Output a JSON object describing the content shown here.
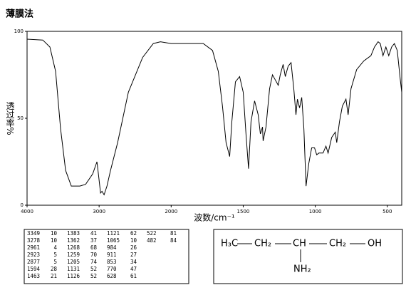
{
  "title": "薄膜法",
  "chart_data": {
    "type": "line",
    "color": "#000000",
    "xlabel": "波数/cm⁻¹",
    "ylabel": "透过率%",
    "x": [
      4000,
      3782,
      3683,
      3604,
      3535,
      3465,
      3386,
      3337,
      3267,
      3188,
      3089,
      3030,
      3010,
      2980,
      2960,
      2931,
      2891,
      2842,
      2743,
      2594,
      2396,
      2248,
      2149,
      2000,
      1901,
      1777,
      1713,
      1673,
      1644,
      1619,
      1594,
      1579,
      1554,
      1525,
      1500,
      1480,
      1463,
      1446,
      1421,
      1396,
      1381,
      1366,
      1362,
      1342,
      1317,
      1297,
      1277,
      1257,
      1243,
      1223,
      1208,
      1188,
      1168,
      1149,
      1134,
      1124,
      1109,
      1094,
      1079,
      1064,
      1045,
      1025,
      1005,
      990,
      975,
      946,
      926,
      911,
      886,
      861,
      851,
      832,
      812,
      787,
      772,
      752,
      713,
      663,
      614,
      589,
      564,
      549,
      530,
      510,
      490,
      470,
      451,
      431,
      411,
      400
    ],
    "values": [
      95.5,
      95,
      91,
      77,
      44,
      20,
      11,
      11,
      11,
      12,
      18,
      25,
      18,
      7,
      8,
      6,
      11,
      20,
      36,
      65,
      85,
      93,
      94,
      93,
      93,
      93,
      89,
      77,
      57,
      36,
      28,
      48,
      71,
      74,
      65,
      40,
      21,
      48,
      60,
      52,
      41,
      45,
      37,
      45,
      67,
      75,
      72,
      69,
      75,
      81,
      74,
      80,
      82,
      67,
      52,
      61,
      56,
      62,
      44,
      11,
      24,
      33,
      33,
      29,
      30,
      30,
      34,
      30,
      39,
      42,
      36,
      48,
      57,
      61,
      52,
      67,
      78,
      83,
      86,
      91,
      94,
      93,
      86,
      91,
      86,
      91,
      93,
      89,
      73,
      65
    ],
    "xlim": [
      4000,
      400
    ],
    "ylim": [
      0,
      100
    ],
    "xticks": [
      4000,
      3000,
      2000,
      1500,
      1000,
      500
    ],
    "yticks": [
      0,
      50,
      100
    ]
  },
  "peak_table": [
    [
      3349,
      10
    ],
    [
      3278,
      10
    ],
    [
      2961,
      4
    ],
    [
      2923,
      5
    ],
    [
      2877,
      5
    ],
    [
      1594,
      28
    ],
    [
      1463,
      21
    ],
    [
      1383,
      41
    ],
    [
      1362,
      37
    ],
    [
      1268,
      68
    ],
    [
      1259,
      70
    ],
    [
      1205,
      74
    ],
    [
      1131,
      52
    ],
    [
      1126,
      52
    ],
    [
      1121,
      62
    ],
    [
      1065,
      10
    ],
    [
      984,
      26
    ],
    [
      911,
      27
    ],
    [
      853,
      34
    ],
    [
      770,
      47
    ],
    [
      628,
      61
    ],
    [
      522,
      81
    ],
    [
      482,
      84
    ]
  ],
  "structure": {
    "chain": [
      "H₃C",
      "CH₂",
      "CH",
      "CH₂",
      "OH"
    ],
    "substituent": "NH₂"
  }
}
